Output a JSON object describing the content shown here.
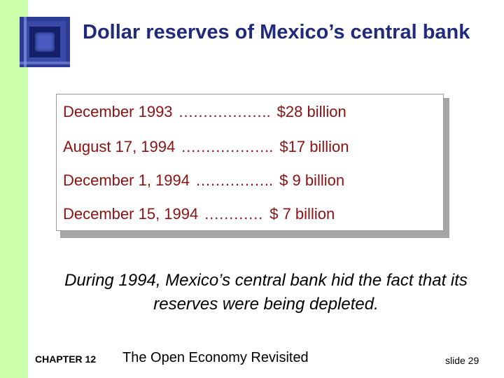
{
  "slide": {
    "title": "Dollar reserves of Mexico’s central bank",
    "reserves": [
      {
        "date": "December 1993",
        "dots": "……………….",
        "amount": "$28 billion"
      },
      {
        "date": "August 17, 1994",
        "dots": "……………….",
        "amount": "$17 billion"
      },
      {
        "date": "December 1, 1994",
        "dots": "…………….",
        "amount": "$ 9 billion"
      },
      {
        "date": "December 15, 1994",
        "dots": "…………",
        "amount": "$ 7 billion"
      }
    ],
    "note": "During 1994, Mexico’s central bank hid the fact that its reserves were being depleted."
  },
  "footer": {
    "chapter": "CHAPTER 12",
    "book_title": "The Open Economy Revisited",
    "slide_number": "slide 29"
  },
  "colors": {
    "sidebar": "#ccffaa",
    "title": "#1f2a7a",
    "reserve_text": "#8b1212"
  },
  "icons": [
    "logo-square-icon"
  ]
}
